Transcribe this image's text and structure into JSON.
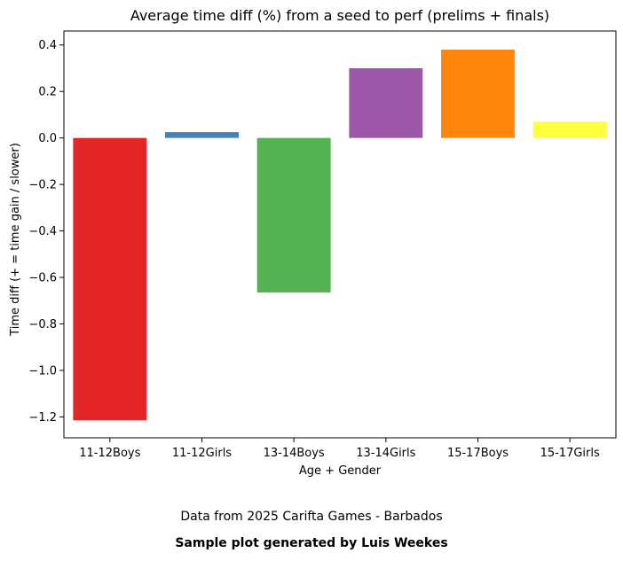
{
  "chart_data": {
    "type": "bar",
    "title": "Average time diff (%) from a seed to perf (prelims + finals)",
    "xlabel": "Age + Gender",
    "ylabel": "Time diff (+ = time gain / slower)",
    "categories": [
      "11-12Boys",
      "11-12Girls",
      "13-14Boys",
      "13-14Girls",
      "15-17Boys",
      "15-17Girls"
    ],
    "values": [
      -1.215,
      0.025,
      -0.665,
      0.3,
      0.38,
      0.07
    ],
    "colors": [
      "#e41a1c",
      "#377eb8",
      "#4daf4a",
      "#984ea3",
      "#ff7f00",
      "#ffff33"
    ],
    "ylim": [
      -1.29,
      0.46
    ],
    "yticks": [
      -1.2,
      -1.0,
      -0.8,
      -0.6,
      -0.4,
      -0.2,
      0.0,
      0.2,
      0.4
    ],
    "grid": false
  },
  "footer": {
    "source": "Data from 2025 Carifta Games - Barbados",
    "credit": "Sample plot generated by Luis Weekes"
  }
}
